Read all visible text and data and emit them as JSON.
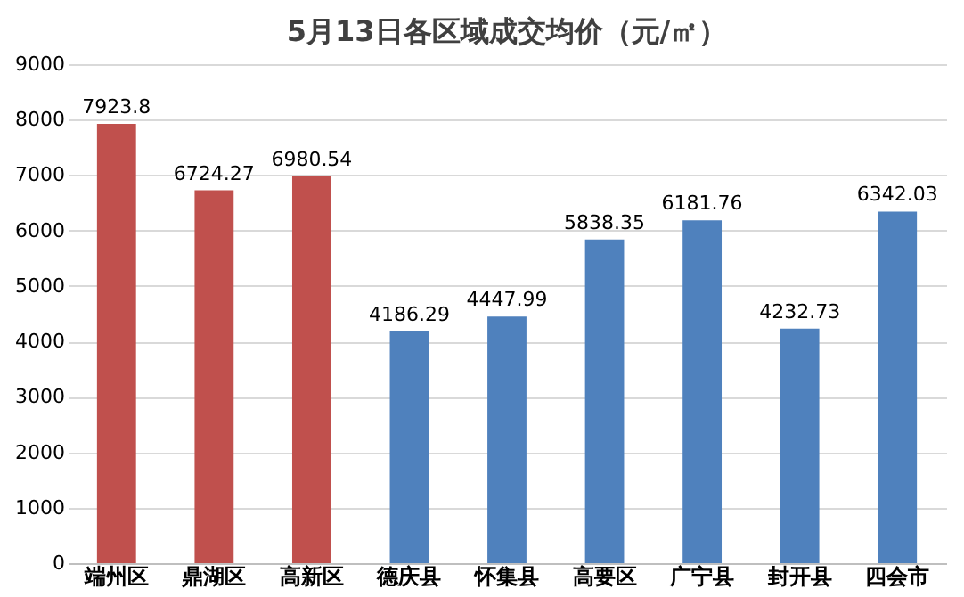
{
  "chart_data": {
    "type": "bar",
    "title": "5月13日各区域成交均价（元/㎡）",
    "categories": [
      "端州区",
      "鼎湖区",
      "高新区",
      "德庆县",
      "怀集县",
      "高要区",
      "广宁县",
      "封开县",
      "四会市"
    ],
    "values": [
      7923.8,
      6724.27,
      6980.54,
      4186.29,
      4447.99,
      5838.35,
      6181.76,
      4232.73,
      6342.03
    ],
    "colors": [
      "#c0504d",
      "#c0504d",
      "#c0504d",
      "#4f81bd",
      "#4f81bd",
      "#4f81bd",
      "#4f81bd",
      "#4f81bd",
      "#4f81bd"
    ],
    "ylim": [
      0,
      9000
    ],
    "yticks": [
      0,
      1000,
      2000,
      3000,
      4000,
      5000,
      6000,
      7000,
      8000,
      9000
    ],
    "grid": "y",
    "data_labels": true,
    "legend": false
  }
}
